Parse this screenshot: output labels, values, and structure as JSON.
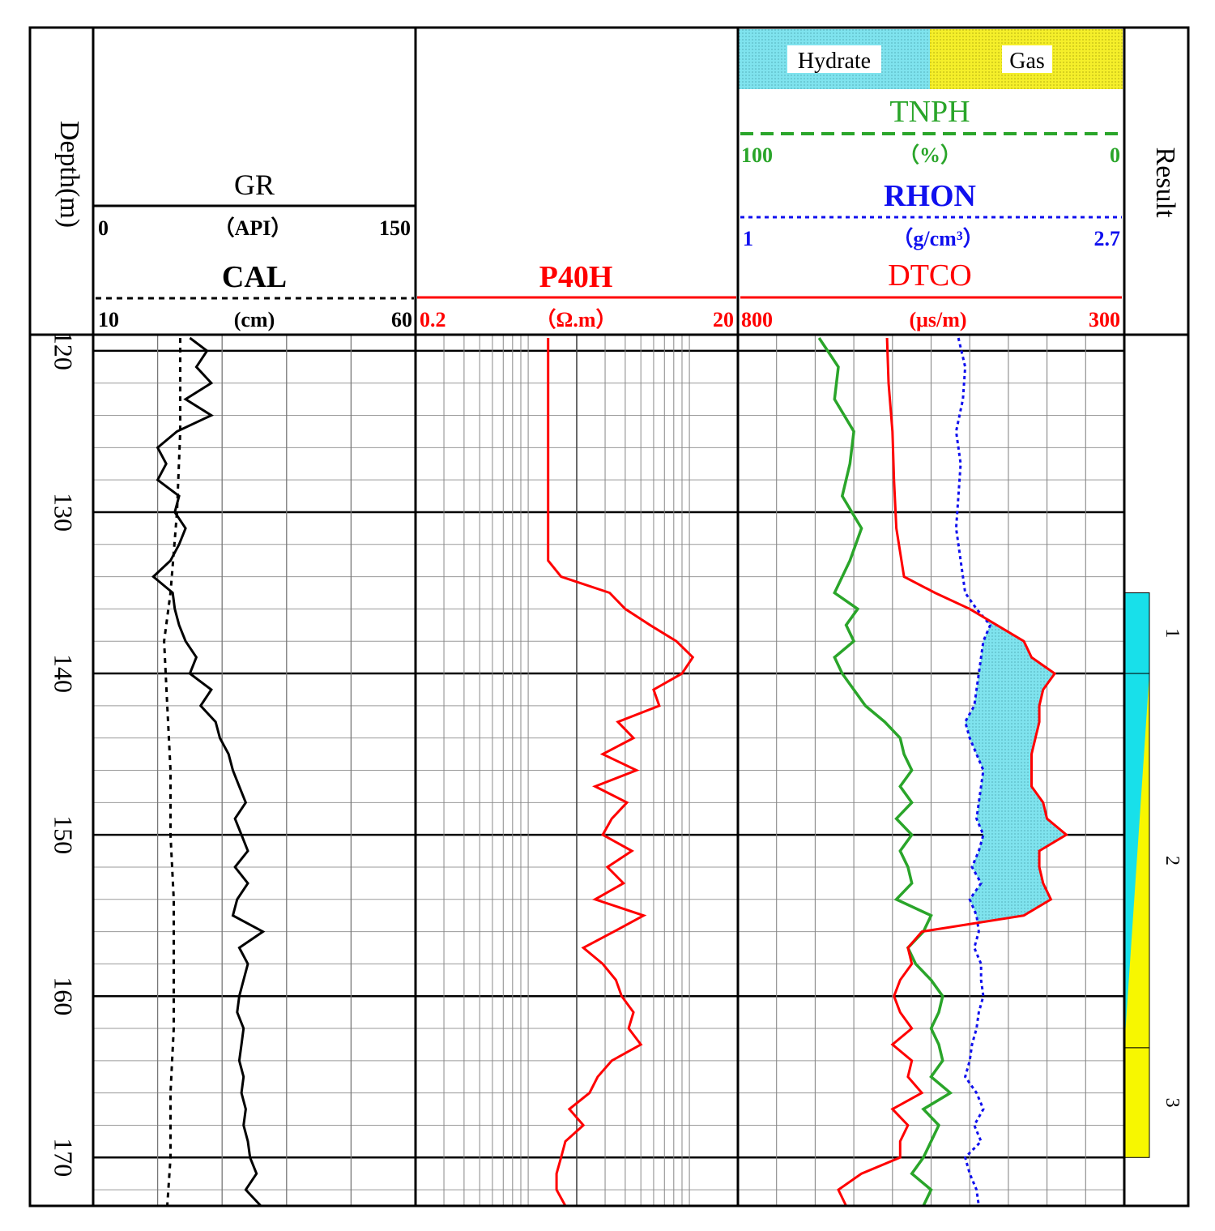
{
  "header": {
    "depth_label": "Depth(m)",
    "result_label": "Result",
    "track1": {
      "gr_name": "GR",
      "gr_unit": "（API）",
      "gr_min": "0",
      "gr_max": "150",
      "cal_name": "CAL",
      "cal_unit": "(cm)",
      "cal_min": "10",
      "cal_max": "60"
    },
    "track2": {
      "name": "P40H",
      "unit": "（Ω.m）",
      "min": "0.2",
      "max": "20"
    },
    "track3": {
      "legend_hydrate": "Hydrate",
      "legend_gas": "Gas",
      "tnph_name": "TNPH",
      "tnph_unit": "（%）",
      "tnph_left": "100",
      "tnph_right": "0",
      "rhon_name": "RHON",
      "rhon_unit": "（g/cm³）",
      "rhon_left": "1",
      "rhon_right": "2.7",
      "dtco_name": "DTCO",
      "dtco_unit": "(μs/m)",
      "dtco_left": "800",
      "dtco_right": "300"
    }
  },
  "colors": {
    "hydrate": "#7fe3ee",
    "gas": "#f5ef2a",
    "gr": "#000000",
    "cal": "#000000",
    "p40h": "#ff0000",
    "tnph": "#2aa52a",
    "rhon": "#1010ee",
    "dtco": "#ff0000",
    "result_hydrate": "#18e0ea",
    "result_gas": "#f7f700"
  },
  "chart_data": {
    "type": "line",
    "title": "",
    "depth_range": [
      119,
      173
    ],
    "depth_ticks": [
      "120",
      "130",
      "140",
      "150",
      "160",
      "170"
    ],
    "curves": {
      "GR": {
        "unit": "API",
        "scale": [
          0,
          150
        ],
        "scale_type": "linear",
        "points": [
          [
            119.2,
            45
          ],
          [
            120,
            53
          ],
          [
            121,
            48
          ],
          [
            122,
            55
          ],
          [
            123,
            43
          ],
          [
            124,
            55
          ],
          [
            125,
            39
          ],
          [
            126,
            30
          ],
          [
            127,
            34
          ],
          [
            128,
            30
          ],
          [
            129,
            40
          ],
          [
            130,
            38
          ],
          [
            131,
            43
          ],
          [
            132,
            40
          ],
          [
            133,
            36
          ],
          [
            134,
            28
          ],
          [
            135,
            37
          ],
          [
            136,
            38
          ],
          [
            137,
            40
          ],
          [
            138,
            43
          ],
          [
            139,
            48
          ],
          [
            140,
            45
          ],
          [
            141,
            55
          ],
          [
            142,
            50
          ],
          [
            143,
            57
          ],
          [
            144,
            59
          ],
          [
            145,
            63
          ],
          [
            146,
            65
          ],
          [
            147,
            68
          ],
          [
            148,
            71
          ],
          [
            149,
            66
          ],
          [
            150,
            69
          ],
          [
            151,
            72
          ],
          [
            152,
            66
          ],
          [
            153,
            72
          ],
          [
            154,
            67
          ],
          [
            155,
            65
          ],
          [
            156,
            79
          ],
          [
            157,
            68
          ],
          [
            158,
            72
          ],
          [
            159,
            70
          ],
          [
            160,
            68
          ],
          [
            161,
            67
          ],
          [
            162,
            70
          ],
          [
            163,
            69
          ],
          [
            164,
            68
          ],
          [
            165,
            70
          ],
          [
            166,
            69
          ],
          [
            167,
            71
          ],
          [
            168,
            70
          ],
          [
            169,
            72
          ],
          [
            170,
            73
          ],
          [
            171,
            76
          ],
          [
            172,
            71
          ],
          [
            173,
            78
          ]
        ]
      },
      "CAL": {
        "unit": "cm",
        "scale": [
          10,
          60
        ],
        "scale_type": "linear",
        "points": [
          [
            119.2,
            23.5
          ],
          [
            125,
            23.5
          ],
          [
            130,
            23
          ],
          [
            135,
            22
          ],
          [
            138,
            21
          ],
          [
            142,
            21.5
          ],
          [
            146,
            22
          ],
          [
            150,
            22
          ],
          [
            154,
            22.5
          ],
          [
            158,
            22.5
          ],
          [
            162,
            22.5
          ],
          [
            166,
            22
          ],
          [
            170,
            22
          ],
          [
            173,
            21.5
          ]
        ]
      },
      "P40H": {
        "unit": "Ω.m",
        "scale": [
          0.2,
          20
        ],
        "scale_type": "log",
        "points": [
          [
            119.2,
            1.33
          ],
          [
            130,
            1.33
          ],
          [
            133,
            1.33
          ],
          [
            134,
            1.6
          ],
          [
            135,
            3.2
          ],
          [
            136,
            4.0
          ],
          [
            137,
            5.7
          ],
          [
            138,
            8.3
          ],
          [
            139,
            10.5
          ],
          [
            140,
            9.0
          ],
          [
            141,
            6.0
          ],
          [
            142,
            6.5
          ],
          [
            143,
            3.6
          ],
          [
            144,
            4.5
          ],
          [
            145,
            2.9
          ],
          [
            146,
            4.7
          ],
          [
            147,
            2.6
          ],
          [
            148,
            4.1
          ],
          [
            149,
            3.3
          ],
          [
            150,
            2.9
          ],
          [
            151,
            4.4
          ],
          [
            152,
            3.1
          ],
          [
            153,
            3.9
          ],
          [
            154,
            2.6
          ],
          [
            155,
            5.2
          ],
          [
            156,
            3.4
          ],
          [
            157,
            2.2
          ],
          [
            158,
            2.9
          ],
          [
            159,
            3.5
          ],
          [
            160,
            3.8
          ],
          [
            161,
            4.5
          ],
          [
            162,
            4.2
          ],
          [
            163,
            5.0
          ],
          [
            164,
            3.3
          ],
          [
            165,
            2.7
          ],
          [
            166,
            2.4
          ],
          [
            167,
            1.8
          ],
          [
            168,
            2.2
          ],
          [
            169,
            1.7
          ],
          [
            170,
            1.6
          ],
          [
            171,
            1.5
          ],
          [
            172,
            1.5
          ],
          [
            173,
            1.7
          ]
        ]
      },
      "TNPH": {
        "unit": "%",
        "scale": [
          100,
          0
        ],
        "scale_type": "linear",
        "points": [
          [
            119.2,
            79
          ],
          [
            121,
            74
          ],
          [
            123,
            75
          ],
          [
            125,
            70
          ],
          [
            127,
            71
          ],
          [
            129,
            73
          ],
          [
            131,
            68
          ],
          [
            133,
            71
          ],
          [
            135,
            75
          ],
          [
            136,
            69
          ],
          [
            137,
            72
          ],
          [
            138,
            70
          ],
          [
            139,
            75
          ],
          [
            140,
            73
          ],
          [
            141,
            70
          ],
          [
            142,
            67
          ],
          [
            143,
            62
          ],
          [
            144,
            58
          ],
          [
            145,
            57
          ],
          [
            146,
            55
          ],
          [
            147,
            58
          ],
          [
            148,
            55
          ],
          [
            149,
            59
          ],
          [
            150,
            55
          ],
          [
            151,
            58
          ],
          [
            152,
            56
          ],
          [
            153,
            55
          ],
          [
            154,
            59
          ],
          [
            155,
            50
          ],
          [
            156,
            52
          ],
          [
            157,
            56
          ],
          [
            158,
            54
          ],
          [
            159,
            50
          ],
          [
            160,
            47
          ],
          [
            161,
            48
          ],
          [
            162,
            50
          ],
          [
            163,
            48
          ],
          [
            164,
            47
          ],
          [
            165,
            50
          ],
          [
            166,
            45
          ],
          [
            167,
            52
          ],
          [
            168,
            48
          ],
          [
            169,
            50
          ],
          [
            170,
            52
          ],
          [
            171,
            55
          ],
          [
            172,
            50
          ],
          [
            173,
            52
          ]
        ]
      },
      "RHON": {
        "unit": "g/cm³",
        "scale": [
          1,
          2.7
        ],
        "scale_type": "linear",
        "points": [
          [
            119.2,
            1.97
          ],
          [
            121,
            2.0
          ],
          [
            123,
            1.99
          ],
          [
            125,
            1.96
          ],
          [
            127,
            1.98
          ],
          [
            129,
            1.97
          ],
          [
            131,
            1.96
          ],
          [
            133,
            1.98
          ],
          [
            135,
            2.0
          ],
          [
            136,
            2.05
          ],
          [
            137,
            2.11
          ],
          [
            138,
            2.08
          ],
          [
            139,
            2.07
          ],
          [
            140,
            2.06
          ],
          [
            141,
            2.05
          ],
          [
            142,
            2.04
          ],
          [
            143,
            2.0
          ],
          [
            144,
            2.02
          ],
          [
            145,
            2.05
          ],
          [
            146,
            2.08
          ],
          [
            147,
            2.07
          ],
          [
            148,
            2.06
          ],
          [
            149,
            2.05
          ],
          [
            150,
            2.08
          ],
          [
            151,
            2.06
          ],
          [
            152,
            2.03
          ],
          [
            153,
            2.07
          ],
          [
            154,
            2.02
          ],
          [
            155,
            2.05
          ],
          [
            156,
            2.06
          ],
          [
            157,
            2.04
          ],
          [
            158,
            2.07
          ],
          [
            159,
            2.07
          ],
          [
            160,
            2.08
          ],
          [
            161,
            2.06
          ],
          [
            162,
            2.05
          ],
          [
            163,
            2.03
          ],
          [
            164,
            2.02
          ],
          [
            165,
            2.0
          ],
          [
            166,
            2.05
          ],
          [
            167,
            2.08
          ],
          [
            168,
            2.04
          ],
          [
            169,
            2.07
          ],
          [
            170,
            2.0
          ],
          [
            171,
            2.02
          ],
          [
            172,
            2.05
          ],
          [
            173,
            2.06
          ]
        ]
      },
      "DTCO": {
        "unit": "μs/m",
        "scale": [
          800,
          300
        ],
        "scale_type": "linear",
        "points": [
          [
            119.2,
            607
          ],
          [
            122,
            605
          ],
          [
            125,
            600
          ],
          [
            128,
            598
          ],
          [
            131,
            595
          ],
          [
            134,
            585
          ],
          [
            135,
            545
          ],
          [
            136,
            500
          ],
          [
            137,
            465
          ],
          [
            138,
            430
          ],
          [
            139,
            420
          ],
          [
            140,
            390
          ],
          [
            141,
            405
          ],
          [
            142,
            410
          ],
          [
            143,
            410
          ],
          [
            144,
            415
          ],
          [
            145,
            420
          ],
          [
            146,
            420
          ],
          [
            147,
            420
          ],
          [
            148,
            405
          ],
          [
            149,
            400
          ],
          [
            150,
            375
          ],
          [
            151,
            410
          ],
          [
            152,
            410
          ],
          [
            153,
            405
          ],
          [
            154,
            395
          ],
          [
            155,
            430
          ],
          [
            156,
            562
          ],
          [
            157,
            580
          ],
          [
            158,
            575
          ],
          [
            159,
            590
          ],
          [
            160,
            598
          ],
          [
            161,
            590
          ],
          [
            162,
            575
          ],
          [
            163,
            600
          ],
          [
            164,
            575
          ],
          [
            165,
            580
          ],
          [
            166,
            562
          ],
          [
            167,
            600
          ],
          [
            168,
            580
          ],
          [
            169,
            590
          ],
          [
            170,
            590
          ],
          [
            171,
            640
          ],
          [
            172,
            670
          ],
          [
            173,
            660
          ]
        ]
      }
    },
    "result_zones": [
      {
        "label": "1",
        "top": 135,
        "bottom": 140,
        "type": "hydrate"
      },
      {
        "label": "2",
        "top": 140,
        "bottom": 163.2,
        "type": "hydrate+gas"
      },
      {
        "label": "3",
        "top": 163.2,
        "bottom": 170,
        "type": "gas"
      }
    ]
  }
}
